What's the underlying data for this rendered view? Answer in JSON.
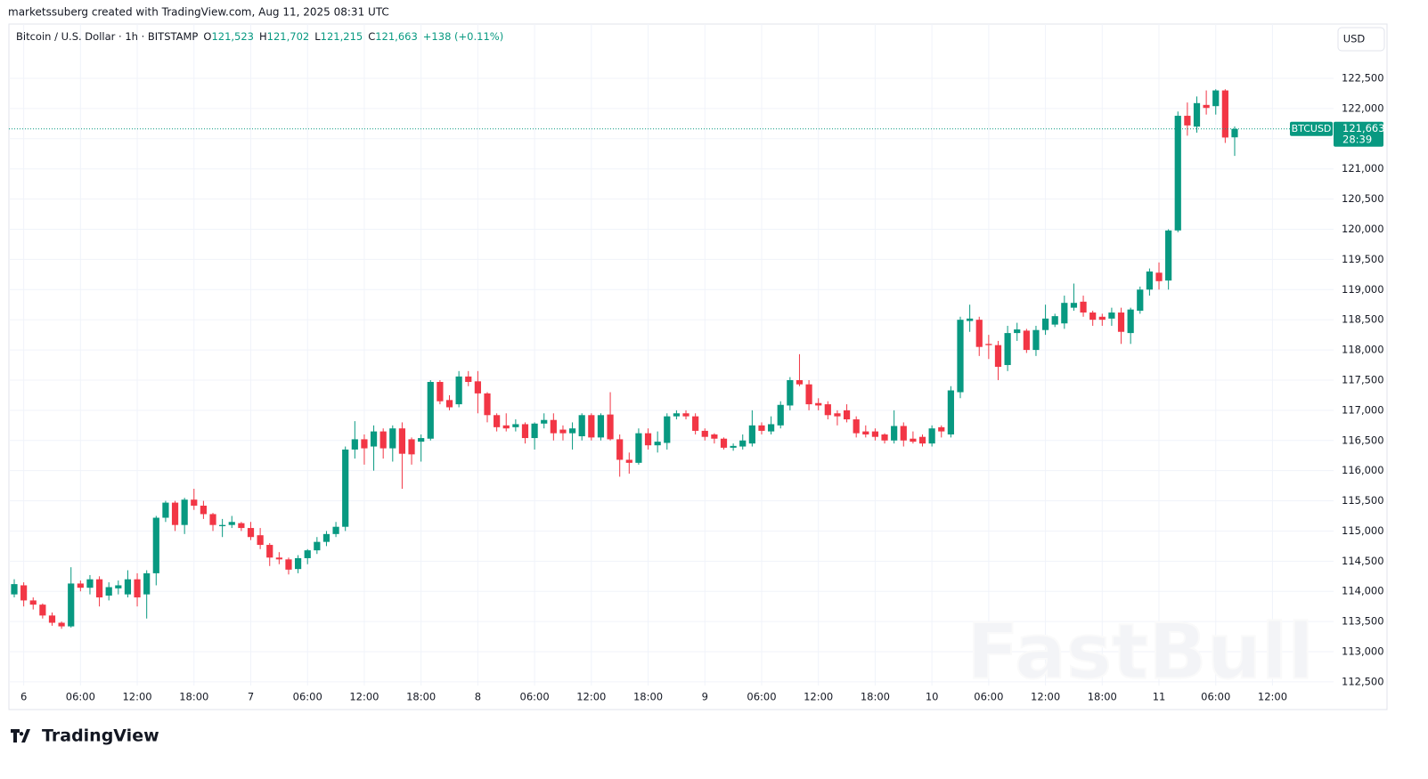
{
  "header": {
    "author_line": "marketssuberg created with TradingView.com, Aug 11, 2025 08:31 UTC"
  },
  "chart_data": {
    "type": "candlestick",
    "symbol_title": "Bitcoin / U.S. Dollar · 1h · BITSTAMP",
    "ohlc_legend": [
      {
        "key": "O",
        "value": "121,523"
      },
      {
        "key": "H",
        "value": "121,702"
      },
      {
        "key": "L",
        "value": "121,215"
      },
      {
        "key": "C",
        "value": "121,663"
      }
    ],
    "change": "+138 (+0.11%)",
    "currency": "USD",
    "price_tag": {
      "symbol": "BTCUSD",
      "price": "121,663",
      "countdown": "28:39"
    },
    "categories": [
      null,
      "6",
      null,
      null,
      null,
      null,
      null,
      "06:00",
      null,
      null,
      null,
      null,
      null,
      "12:00",
      null,
      null,
      null,
      null,
      null,
      "18:00",
      null,
      null,
      null,
      null,
      null,
      "7",
      null,
      null,
      null,
      null,
      null,
      "06:00",
      null,
      null,
      null,
      null,
      null,
      "12:00",
      null,
      null,
      null,
      null,
      null,
      "18:00",
      null,
      null,
      null,
      null,
      null,
      "8",
      null,
      null,
      null,
      null,
      null,
      "06:00",
      null,
      null,
      null,
      null,
      null,
      "12:00",
      null,
      null,
      null,
      null,
      null,
      "18:00",
      null,
      null,
      null,
      null,
      null,
      "9",
      null,
      null,
      null,
      null,
      null,
      "06:00",
      null,
      null,
      null,
      null,
      null,
      "12:00",
      null,
      null,
      null,
      null,
      null,
      "18:00",
      null,
      null,
      null,
      null,
      null,
      "10",
      null,
      null,
      null,
      null,
      null,
      "06:00",
      null,
      null,
      null,
      null,
      null,
      "12:00",
      null,
      null,
      null,
      null,
      null,
      "18:00",
      null,
      null,
      null,
      null,
      null,
      "11",
      null,
      null,
      null,
      null,
      null,
      "06:00",
      null,
      null,
      null,
      null,
      null,
      "12:00",
      null,
      null,
      null,
      null,
      null,
      null
    ],
    "open": [
      113950,
      114100,
      113850,
      113780,
      113600,
      113480,
      113420,
      114130,
      114060,
      114200,
      113930,
      114050,
      113950,
      114200,
      113950,
      114300,
      115220,
      115470,
      115100,
      115520,
      115420,
      115280,
      115080,
      115100,
      115130,
      115050,
      114930,
      114770,
      114560,
      114530,
      114370,
      114550,
      114680,
      114820,
      114950,
      115070,
      116350,
      116520,
      116400,
      116650,
      116370,
      116700,
      116520,
      116480,
      116530,
      117470,
      117170,
      117100,
      117560,
      117480,
      117280,
      116920,
      116750,
      116720,
      116770,
      116540,
      116780,
      116840,
      116680,
      116620,
      116570,
      116920,
      116550,
      116930,
      116520,
      116180,
      116130,
      116620,
      116420,
      116460,
      116900,
      116950,
      116900,
      116660,
      116600,
      116530,
      116380,
      116400,
      116450,
      116750,
      116650,
      116750,
      117080,
      117500,
      117430,
      117120,
      117100,
      116950,
      117000,
      116850,
      116650,
      116650,
      116600,
      116500,
      116740,
      116530,
      116560,
      116450,
      116720,
      116600,
      117300,
      118480,
      118500,
      118100,
      118080,
      117750,
      118280,
      118320,
      118000,
      118330,
      118420,
      118440,
      118700,
      118800,
      118620,
      118550,
      118520,
      118620,
      118280,
      118650,
      119000,
      119280,
      119150,
      119980,
      121880,
      121700,
      122060,
      122040,
      122300,
      121523,
      null,
      null,
      null,
      null,
      null,
      null,
      null,
      null,
      null,
      null
    ],
    "high": [
      114200,
      114150,
      113900,
      113800,
      113650,
      113500,
      114400,
      114180,
      114270,
      114250,
      114150,
      114180,
      114350,
      114300,
      114350,
      115250,
      115500,
      115500,
      115550,
      115700,
      115500,
      115300,
      115200,
      115250,
      115150,
      115150,
      115050,
      114800,
      114650,
      114560,
      114600,
      114700,
      114900,
      115000,
      115150,
      116400,
      116820,
      116600,
      116750,
      116700,
      116750,
      116800,
      116550,
      116600,
      117500,
      117500,
      117250,
      117650,
      117650,
      117650,
      117300,
      116950,
      116950,
      116850,
      116800,
      116800,
      116950,
      116950,
      116750,
      116800,
      116950,
      116950,
      116950,
      117300,
      116600,
      116300,
      116700,
      116700,
      116650,
      116950,
      117000,
      117000,
      116950,
      116700,
      116620,
      116550,
      116450,
      116600,
      117000,
      116800,
      116900,
      117150,
      117550,
      117930,
      117500,
      117200,
      117150,
      117000,
      117100,
      116900,
      116750,
      116700,
      116620,
      117000,
      116800,
      116650,
      116600,
      116750,
      116750,
      117400,
      118550,
      118750,
      118550,
      118250,
      118150,
      118400,
      118450,
      118350,
      118400,
      118750,
      118600,
      118900,
      119100,
      118900,
      118650,
      118600,
      118700,
      118700,
      118700,
      119050,
      119350,
      119450,
      120000,
      121950,
      122100,
      122200,
      122300,
      122320,
      122320,
      121702,
      null,
      null,
      null,
      null,
      null,
      null,
      null,
      null,
      null,
      null
    ],
    "low": [
      113900,
      113750,
      113700,
      113550,
      113430,
      113380,
      113400,
      114000,
      113950,
      113750,
      113850,
      113950,
      113900,
      113750,
      113550,
      114100,
      115150,
      115000,
      114950,
      115350,
      115200,
      115000,
      114900,
      115050,
      115000,
      114850,
      114700,
      114420,
      114450,
      114280,
      114300,
      114450,
      114620,
      114750,
      114900,
      115000,
      116200,
      116100,
      116000,
      116200,
      116150,
      115700,
      116100,
      116150,
      116500,
      117100,
      117000,
      117050,
      117400,
      116950,
      116800,
      116650,
      116650,
      116650,
      116450,
      116350,
      116700,
      116500,
      116500,
      116350,
      116500,
      116500,
      116500,
      116500,
      115900,
      115950,
      116100,
      116350,
      116300,
      116350,
      116850,
      116850,
      116600,
      116500,
      116450,
      116350,
      116330,
      116350,
      116400,
      116600,
      116600,
      116700,
      117000,
      117400,
      117000,
      117000,
      116850,
      116750,
      116800,
      116550,
      116550,
      116500,
      116450,
      116450,
      116400,
      116450,
      116400,
      116400,
      116550,
      116550,
      117200,
      118300,
      117900,
      117850,
      117500,
      117650,
      118150,
      117950,
      117900,
      118250,
      118380,
      118350,
      118650,
      118550,
      118400,
      118400,
      118400,
      118100,
      118100,
      118600,
      118900,
      119000,
      119000,
      119950,
      121550,
      121600,
      121900,
      121900,
      121430,
      121215,
      null,
      null,
      null,
      null,
      null,
      null,
      null,
      null,
      null,
      null
    ],
    "close": [
      114120,
      113850,
      113780,
      113600,
      113480,
      113420,
      114130,
      114060,
      114200,
      113900,
      114070,
      114100,
      114200,
      113900,
      114300,
      115220,
      115470,
      115100,
      115520,
      115420,
      115280,
      115100,
      115100,
      115150,
      115050,
      114900,
      114770,
      114560,
      114530,
      114360,
      114550,
      114680,
      114820,
      114950,
      115070,
      116350,
      116520,
      116370,
      116650,
      116370,
      116700,
      116280,
      116270,
      116540,
      117470,
      117150,
      117050,
      117560,
      117470,
      117280,
      116920,
      116720,
      116700,
      116770,
      116540,
      116780,
      116840,
      116620,
      116620,
      116700,
      116920,
      116550,
      116920,
      116520,
      116180,
      116130,
      116620,
      116420,
      116480,
      116900,
      116950,
      116900,
      116660,
      116560,
      116530,
      116380,
      116410,
      116500,
      116750,
      116660,
      116770,
      117090,
      117500,
      117430,
      117100,
      117080,
      116920,
      116900,
      116850,
      116620,
      116600,
      116560,
      116500,
      116740,
      116500,
      116480,
      116450,
      116700,
      116650,
      117330,
      118500,
      118520,
      118050,
      118080,
      117720,
      118280,
      118340,
      118000,
      118330,
      118520,
      118560,
      118780,
      118780,
      118620,
      118500,
      118500,
      118620,
      118300,
      118670,
      119000,
      119300,
      119140,
      119980,
      121880,
      121720,
      122090,
      122010,
      122300,
      121520,
      121663,
      null,
      null,
      null,
      null,
      null,
      null,
      null,
      null,
      null,
      null
    ],
    "up_color": "#089981",
    "down_color": "#f23645",
    "ylim": [
      112440,
      123400
    ],
    "yticks": [
      {
        "value": 112500,
        "label": "112,500"
      },
      {
        "value": 113000,
        "label": "113,000"
      },
      {
        "value": 113500,
        "label": "113,500"
      },
      {
        "value": 114000,
        "label": "114,000"
      },
      {
        "value": 114500,
        "label": "114,500"
      },
      {
        "value": 115000,
        "label": "115,000"
      },
      {
        "value": 115500,
        "label": "115,500"
      },
      {
        "value": 116000,
        "label": "116,000"
      },
      {
        "value": 116500,
        "label": "116,500"
      },
      {
        "value": 117000,
        "label": "117,000"
      },
      {
        "value": 117500,
        "label": "117,500"
      },
      {
        "value": 118000,
        "label": "118,000"
      },
      {
        "value": 118500,
        "label": "118,500"
      },
      {
        "value": 119000,
        "label": "119,000"
      },
      {
        "value": 119500,
        "label": "119,500"
      },
      {
        "value": 120000,
        "label": "120,000"
      },
      {
        "value": 120500,
        "label": "120,500"
      },
      {
        "value": 121000,
        "label": "121,000"
      },
      {
        "value": 121500,
        "label": "121,500"
      },
      {
        "value": 122000,
        "label": "122,000"
      },
      {
        "value": 122500,
        "label": "122,500"
      }
    ],
    "grid": true
  },
  "watermark": "FastBull",
  "footer": {
    "logo": "TradingView"
  }
}
